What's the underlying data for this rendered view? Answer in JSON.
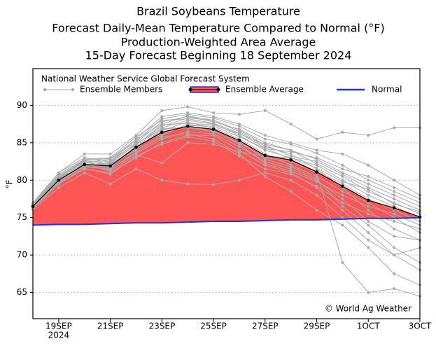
{
  "chart_data": {
    "type": "line",
    "title": "Brazil Soybeans Temperature",
    "subtitles": [
      "Forecast Daily-Mean Temperature Compared to Normal (°F)",
      "Production-Weighted Area Average",
      "15-Day Forecast Beginning 18 September 2024"
    ],
    "model_label": "National Weather Service Global Forecast System",
    "source": "© World Ag Weather",
    "ylabel": "°F",
    "x": [
      "2024-09-18",
      "2024-09-19",
      "2024-09-20",
      "2024-09-21",
      "2024-09-22",
      "2024-09-23",
      "2024-09-24",
      "2024-09-25",
      "2024-09-26",
      "2024-09-27",
      "2024-09-28",
      "2024-09-29",
      "2024-09-30",
      "2024-10-01",
      "2024-10-02",
      "2024-10-03"
    ],
    "xlim": [
      "2024-09-18",
      "2024-10-03"
    ],
    "xticks": [
      {
        "value": "2024-09-19",
        "label": "19SEP"
      },
      {
        "value": "2024-09-21",
        "label": "21SEP"
      },
      {
        "value": "2024-09-23",
        "label": "23SEP"
      },
      {
        "value": "2024-09-25",
        "label": "25SEP"
      },
      {
        "value": "2024-09-27",
        "label": "27SEP"
      },
      {
        "value": "2024-09-29",
        "label": "29SEP"
      },
      {
        "value": "2024-10-01",
        "label": "1OCT"
      },
      {
        "value": "2024-10-03",
        "label": "3OCT"
      }
    ],
    "xtick_year": "2024",
    "ylim": [
      61.5,
      94.9
    ],
    "yticks": [
      65,
      70,
      75,
      80,
      85,
      90
    ],
    "grid": true,
    "members": {
      "name": "Ensemble Members",
      "color": "#aaaaaa",
      "values": [
        [
          76.5,
          80.5,
          82.5,
          82.0,
          84.5,
          87.0,
          88.0,
          87.5,
          86.0,
          84.0,
          83.0,
          82.0,
          80.0,
          78.0,
          76.5,
          75.0
        ],
        [
          76.8,
          81.0,
          83.0,
          82.5,
          85.5,
          88.5,
          89.0,
          88.5,
          87.5,
          86.0,
          85.0,
          84.0,
          83.5,
          82.0,
          80.0,
          78.0
        ],
        [
          76.2,
          79.5,
          81.5,
          81.0,
          83.0,
          85.0,
          86.0,
          86.0,
          84.0,
          82.0,
          81.0,
          79.0,
          76.0,
          73.0,
          70.0,
          68.0
        ],
        [
          76.5,
          80.0,
          82.0,
          82.0,
          84.0,
          86.0,
          87.5,
          87.0,
          85.5,
          83.5,
          82.0,
          80.5,
          78.5,
          77.0,
          75.0,
          73.0
        ],
        [
          77.0,
          81.0,
          83.5,
          83.5,
          86.0,
          89.3,
          89.8,
          89.0,
          88.8,
          89.3,
          87.5,
          85.5,
          86.4,
          86.0,
          87.0,
          87.0
        ],
        [
          76.0,
          79.0,
          81.0,
          79.5,
          81.5,
          80.0,
          79.5,
          79.4,
          80.0,
          81.0,
          80.0,
          78.0,
          75.0,
          72.0,
          70.0,
          71.0
        ],
        [
          76.5,
          80.2,
          82.3,
          82.2,
          84.8,
          87.2,
          88.3,
          88.0,
          86.5,
          84.5,
          83.5,
          81.5,
          79.0,
          76.0,
          73.5,
          72.0
        ],
        [
          76.7,
          80.6,
          82.6,
          82.4,
          85.0,
          87.8,
          88.5,
          87.8,
          86.8,
          85.0,
          84.0,
          82.8,
          81.0,
          79.5,
          78.0,
          76.5
        ],
        [
          76.3,
          79.8,
          81.8,
          81.5,
          83.6,
          85.5,
          86.5,
          86.2,
          84.5,
          82.5,
          81.5,
          80.0,
          77.5,
          74.5,
          72.5,
          72.0
        ],
        [
          76.4,
          79.7,
          82.0,
          81.8,
          84.2,
          86.8,
          87.0,
          86.5,
          85.0,
          83.0,
          82.5,
          81.0,
          69.0,
          65.0,
          65.5,
          64.5
        ],
        [
          76.6,
          80.3,
          82.2,
          81.6,
          84.6,
          86.2,
          87.3,
          87.2,
          85.8,
          84.2,
          83.8,
          83.0,
          81.5,
          80.5,
          79.0,
          77.5
        ],
        [
          76.5,
          80.1,
          82.1,
          82.1,
          84.3,
          86.6,
          87.8,
          86.9,
          85.2,
          82.8,
          81.8,
          80.2,
          76.5,
          74.0,
          71.0,
          69.0
        ],
        [
          76.4,
          79.9,
          81.9,
          82.3,
          84.7,
          87.4,
          87.6,
          87.4,
          86.2,
          84.8,
          84.0,
          82.2,
          80.5,
          78.5,
          77.0,
          75.5
        ],
        [
          76.6,
          80.4,
          82.4,
          82.8,
          85.2,
          88.2,
          88.8,
          88.3,
          87.2,
          85.5,
          84.8,
          83.6,
          82.0,
          80.0,
          78.5,
          77.0
        ],
        [
          76.5,
          80.0,
          81.9,
          81.4,
          83.8,
          85.8,
          86.2,
          85.5,
          83.5,
          80.5,
          78.5,
          76.0,
          74.0,
          71.0,
          67.5,
          66.0
        ],
        [
          76.3,
          79.6,
          81.6,
          80.8,
          83.2,
          84.8,
          85.8,
          85.2,
          83.2,
          81.5,
          80.8,
          79.2,
          77.0,
          75.5,
          74.5,
          73.5
        ],
        [
          76.7,
          80.8,
          82.8,
          83.0,
          85.8,
          88.0,
          88.2,
          87.6,
          86.3,
          84.3,
          82.8,
          81.2,
          79.5,
          77.5,
          76.0,
          74.5
        ],
        [
          76.5,
          80.2,
          82.0,
          82.6,
          84.9,
          86.9,
          87.1,
          86.6,
          84.8,
          82.2,
          81.2,
          79.8,
          78.0,
          76.5,
          75.5,
          74.0
        ],
        [
          76.4,
          79.8,
          82.2,
          81.2,
          83.4,
          82.3,
          85.0,
          84.8,
          83.8,
          83.2,
          83.0,
          81.6,
          79.8,
          78.8,
          76.8,
          75.8
        ],
        [
          76.6,
          80.6,
          82.7,
          82.9,
          85.4,
          87.5,
          88.6,
          88.0,
          86.7,
          84.7,
          83.2,
          82.5,
          80.8,
          79.0,
          77.5,
          76.0
        ]
      ]
    },
    "series": [
      {
        "name": "Ensemble Average",
        "color": "#000000",
        "fill": "#ff5555",
        "values": [
          76.5,
          80.0,
          82.1,
          81.9,
          84.4,
          86.4,
          87.2,
          86.8,
          85.3,
          83.3,
          82.7,
          81.1,
          79.2,
          77.3,
          76.3,
          75.1
        ]
      },
      {
        "name": "Normal",
        "color": "#2233dd",
        "values": [
          74.0,
          74.1,
          74.1,
          74.2,
          74.3,
          74.3,
          74.4,
          74.5,
          74.5,
          74.6,
          74.7,
          74.7,
          74.8,
          74.9,
          74.9,
          75.0
        ]
      }
    ]
  }
}
